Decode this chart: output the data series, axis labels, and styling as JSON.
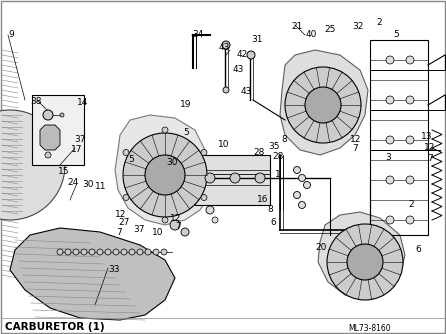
{
  "title": "CARBURETOR (1)",
  "ref": "ML73-8160",
  "bg_color": "#ffffff",
  "fg_color": "#000000",
  "light_gray": "#cccccc",
  "mid_gray": "#888888",
  "dark_gray": "#444444",
  "border_color": "#888888",
  "bottom_label": "CARBURETOR (1)",
  "bottom_ref": "ML73-8160"
}
